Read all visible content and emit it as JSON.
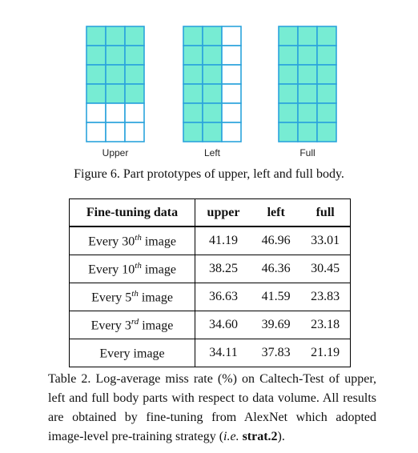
{
  "figure": {
    "grids": [
      {
        "label": "Upper",
        "filled": [
          [
            1,
            1,
            1
          ],
          [
            1,
            1,
            1
          ],
          [
            1,
            1,
            1
          ],
          [
            1,
            1,
            1
          ],
          [
            0,
            0,
            0
          ],
          [
            0,
            0,
            0
          ]
        ]
      },
      {
        "label": "Left",
        "filled": [
          [
            1,
            1,
            0
          ],
          [
            1,
            1,
            0
          ],
          [
            1,
            1,
            0
          ],
          [
            1,
            1,
            0
          ],
          [
            1,
            1,
            0
          ],
          [
            1,
            1,
            0
          ]
        ]
      },
      {
        "label": "Full",
        "filled": [
          [
            1,
            1,
            1
          ],
          [
            1,
            1,
            1
          ],
          [
            1,
            1,
            1
          ],
          [
            1,
            1,
            1
          ],
          [
            1,
            1,
            1
          ],
          [
            1,
            1,
            1
          ]
        ]
      }
    ],
    "fill_color": "#77ecd3",
    "line_color": "#2ba3dc",
    "caption": "Figure 6. Part prototypes of upper, left and full body."
  },
  "table": {
    "headers": [
      "Fine-tuning data",
      "upper",
      "left",
      "full"
    ],
    "rows": [
      {
        "pre": "Every 30",
        "sup": "th",
        "post": " image",
        "values": [
          "41.19",
          "46.96",
          "33.01"
        ]
      },
      {
        "pre": "Every 10",
        "sup": "th",
        "post": " image",
        "values": [
          "38.25",
          "46.36",
          "30.45"
        ]
      },
      {
        "pre": "Every 5",
        "sup": "th",
        "post": " image",
        "values": [
          "36.63",
          "41.59",
          "23.83"
        ]
      },
      {
        "pre": "Every 3",
        "sup": "rd",
        "post": " image",
        "values": [
          "34.60",
          "39.69",
          "23.18"
        ]
      },
      {
        "pre": "Every image",
        "sup": "",
        "post": "",
        "values": [
          "34.11",
          "37.83",
          "21.19"
        ]
      }
    ]
  },
  "caption_table": {
    "part1": "Table 2. Log-average miss rate (%) on Caltech-Test of upper, left and full body parts with respect to data volume.  All results are obtained by fine-tuning from AlexNet which adopted image-level pre-training strategy (",
    "ie": "i.e.",
    "space": " ",
    "strat": "strat.2",
    "end": ")."
  }
}
